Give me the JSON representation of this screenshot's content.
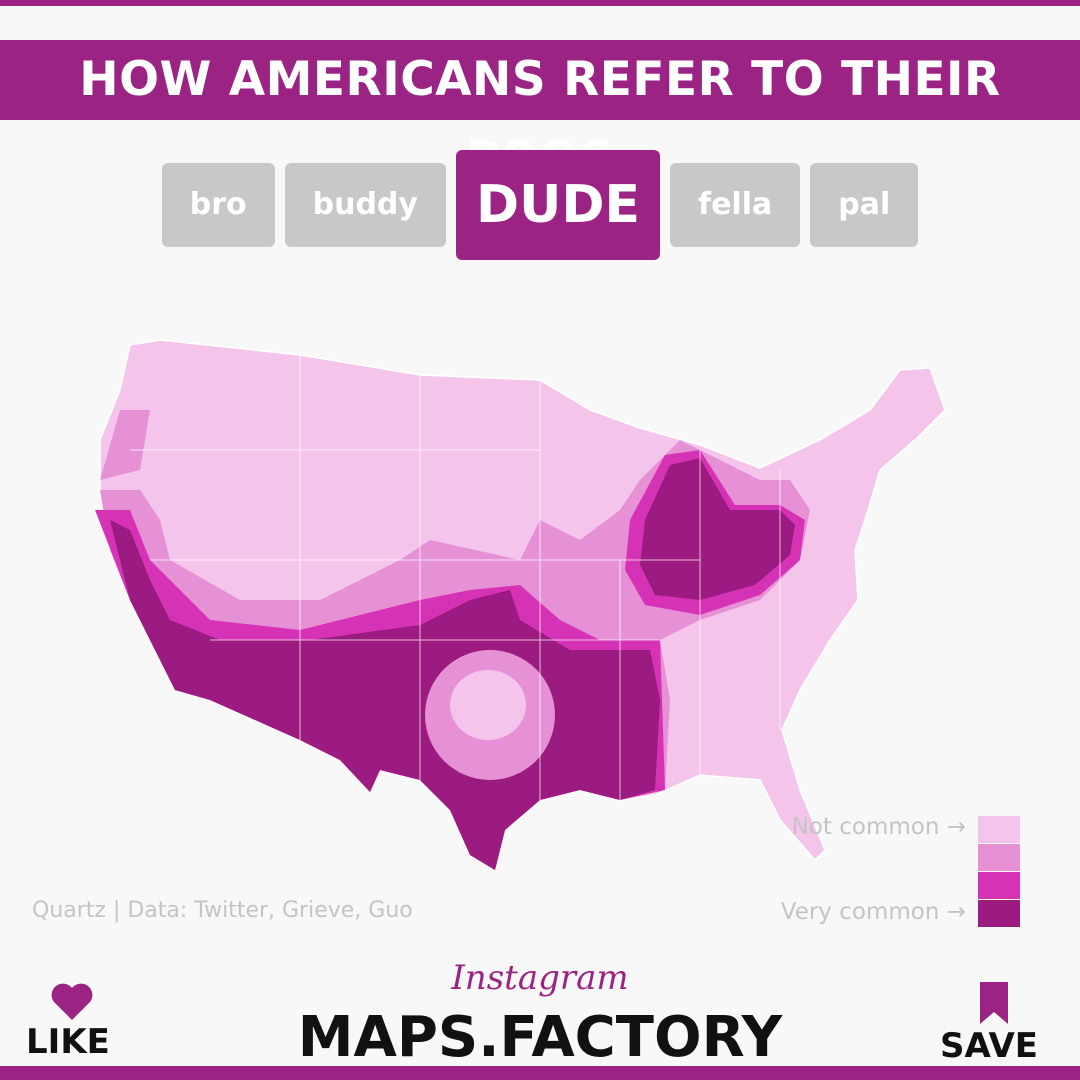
{
  "header": {
    "title": "HOW AMERICANS REFER TO THEIR BROS"
  },
  "tabs": [
    {
      "label": "bro",
      "selected": false
    },
    {
      "label": "buddy",
      "selected": false
    },
    {
      "label": "DUDE",
      "selected": true
    },
    {
      "label": "fella",
      "selected": false
    },
    {
      "label": "pal",
      "selected": false
    }
  ],
  "legend": {
    "labels": [
      "Not common →",
      "Very common →"
    ],
    "colors": [
      "#f5c4ea",
      "#e690d6",
      "#d632b6",
      "#9b1b80"
    ]
  },
  "source": "Quartz | Data: Twitter, Grieve, Guo",
  "footer": {
    "instagram": "Instagram",
    "account": "MAPS.FACTORY",
    "like": "LIKE",
    "save": "SAVE"
  }
}
